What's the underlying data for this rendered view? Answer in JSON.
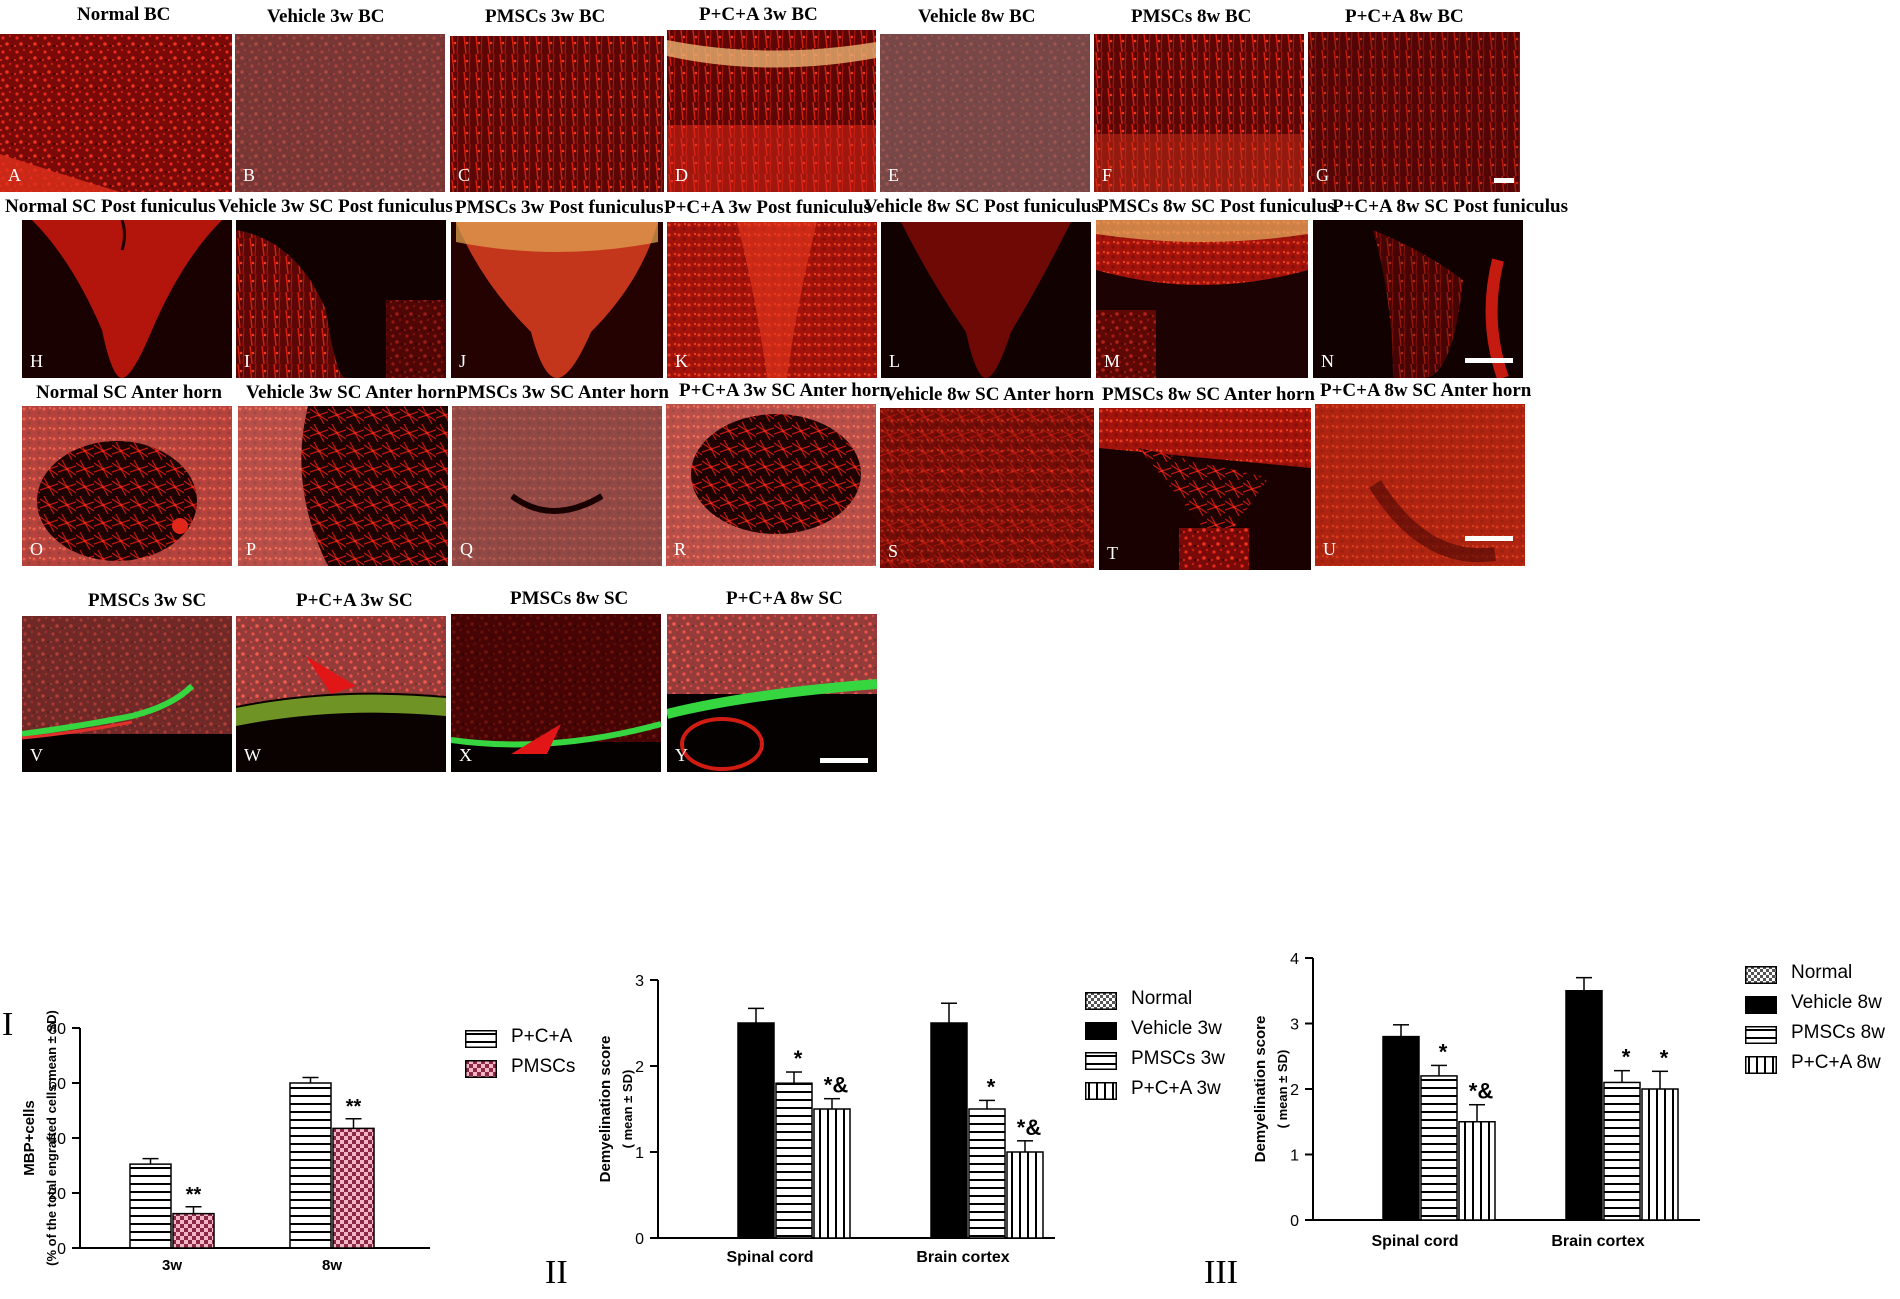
{
  "colors": {
    "tissue_red": "#d81a10",
    "dark": "#1a0202",
    "green": "#32d23c",
    "bar_black": "#000000",
    "pink": "#f2a3b7",
    "white": "#ffffff"
  },
  "rows": [
    {
      "row": "row-1",
      "panels": [
        {
          "title": "Normal BC",
          "label": "A"
        },
        {
          "title": "Vehicle 3w BC",
          "label": "B"
        },
        {
          "title": "PMSCs 3w BC",
          "label": "C"
        },
        {
          "title": "P+C+A 3w BC",
          "label": "D"
        },
        {
          "title": "Vehicle 8w BC",
          "label": "E"
        },
        {
          "title": "PMSCs 8w BC",
          "label": "F"
        },
        {
          "title": "P+C+A 8w BC",
          "label": "G"
        }
      ]
    },
    {
      "row": "row-2",
      "panels": [
        {
          "title": "Normal SC Post funiculus",
          "label": "H"
        },
        {
          "title": "Vehicle 3w SC Post funiculus",
          "label": "I"
        },
        {
          "title": "PMSCs 3w Post funiculus",
          "label": "J"
        },
        {
          "title": "P+C+A 3w Post funiculus",
          "label": "K"
        },
        {
          "title": "Vehicle 8w SC Post funiculus",
          "label": "L"
        },
        {
          "title": "PMSCs 8w SC Post funiculus",
          "label": "M"
        },
        {
          "title": "P+C+A 8w SC Post funiculus",
          "label": "N"
        }
      ]
    },
    {
      "row": "row-3",
      "panels": [
        {
          "title": "Normal SC Anter horn",
          "label": "O"
        },
        {
          "title": "Vehicle 3w SC Anter horn",
          "label": "P"
        },
        {
          "title": "PMSCs 3w SC Anter horn",
          "label": "Q"
        },
        {
          "title": "P+C+A 3w SC Anter horn",
          "label": "R"
        },
        {
          "title": "Vehicle 8w SC Anter horn",
          "label": "S"
        },
        {
          "title": "PMSCs 8w SC Anter horn",
          "label": "T"
        },
        {
          "title": "P+C+A 8w SC Anter horn",
          "label": "U"
        }
      ]
    },
    {
      "row": "row-4",
      "panels": [
        {
          "title": "PMSCs 3w SC",
          "label": "V"
        },
        {
          "title": "P+C+A 3w SC",
          "label": "W"
        },
        {
          "title": "PMSCs 8w SC",
          "label": "X"
        },
        {
          "title": "P+C+A 8w SC",
          "label": "Y"
        }
      ]
    }
  ],
  "chart_data": [
    {
      "panel": "I",
      "type": "bar",
      "ylabel": "MBP+cells",
      "ylabel2": "(% of the total engrafted cells mean ± SD)",
      "categories": [
        "3w",
        "8w"
      ],
      "ylim": [
        0,
        80
      ],
      "yticks": [
        0,
        20,
        40,
        60,
        80
      ],
      "series": [
        {
          "name": "P+C+A",
          "values": [
            30.5,
            60
          ],
          "errors": [
            2,
            2
          ],
          "pattern": "horizontal",
          "marks": [
            "",
            ""
          ]
        },
        {
          "name": "PMSCs",
          "values": [
            12.5,
            43.5
          ],
          "errors": [
            2.5,
            3.5
          ],
          "pattern": "checker-pink",
          "marks": [
            "**",
            "**"
          ]
        }
      ]
    },
    {
      "panel": "II",
      "type": "bar",
      "ylabel": "Demyelination score",
      "ylabel2": "( mean ± SD)",
      "categories": [
        "Spinal cord",
        "Brain cortex"
      ],
      "ylim": [
        0,
        3
      ],
      "yticks": [
        0,
        1,
        2,
        3
      ],
      "series": [
        {
          "name": "Normal",
          "values": [
            0,
            0
          ],
          "errors": [
            0,
            0
          ],
          "pattern": "checker",
          "marks": [
            "",
            ""
          ]
        },
        {
          "name": "Vehicle 3w",
          "values": [
            2.5,
            2.5
          ],
          "errors": [
            0.17,
            0.23
          ],
          "pattern": "solid",
          "marks": [
            "",
            ""
          ]
        },
        {
          "name": "PMSCs 3w",
          "values": [
            1.8,
            1.5
          ],
          "errors": [
            0.13,
            0.1
          ],
          "pattern": "horizontal",
          "marks": [
            "*",
            "*"
          ]
        },
        {
          "name": "P+C+A 3w",
          "values": [
            1.5,
            1.0
          ],
          "errors": [
            0.12,
            0.13
          ],
          "pattern": "vertical",
          "marks": [
            "*&",
            "*&"
          ]
        }
      ]
    },
    {
      "panel": "III",
      "type": "bar",
      "ylabel": "Demyelination score",
      "ylabel2": "( mean ± SD)",
      "categories": [
        "Spinal cord",
        "Brain cortex"
      ],
      "ylim": [
        0,
        4
      ],
      "yticks": [
        0,
        1,
        2,
        3,
        4
      ],
      "series": [
        {
          "name": "Normal",
          "values": [
            0,
            0
          ],
          "errors": [
            0,
            0
          ],
          "pattern": "checker",
          "marks": [
            "",
            ""
          ]
        },
        {
          "name": "Vehicle 8w",
          "values": [
            2.8,
            3.5
          ],
          "errors": [
            0.18,
            0.2
          ],
          "pattern": "solid",
          "marks": [
            "",
            ""
          ]
        },
        {
          "name": "PMSCs 8w",
          "values": [
            2.2,
            2.1
          ],
          "errors": [
            0.16,
            0.18
          ],
          "pattern": "horizontal",
          "marks": [
            "*",
            "*"
          ]
        },
        {
          "name": "P+C+A 8w",
          "values": [
            1.5,
            2.0
          ],
          "errors": [
            0.26,
            0.27
          ],
          "pattern": "vertical",
          "marks": [
            "*&",
            "*"
          ]
        }
      ]
    }
  ]
}
